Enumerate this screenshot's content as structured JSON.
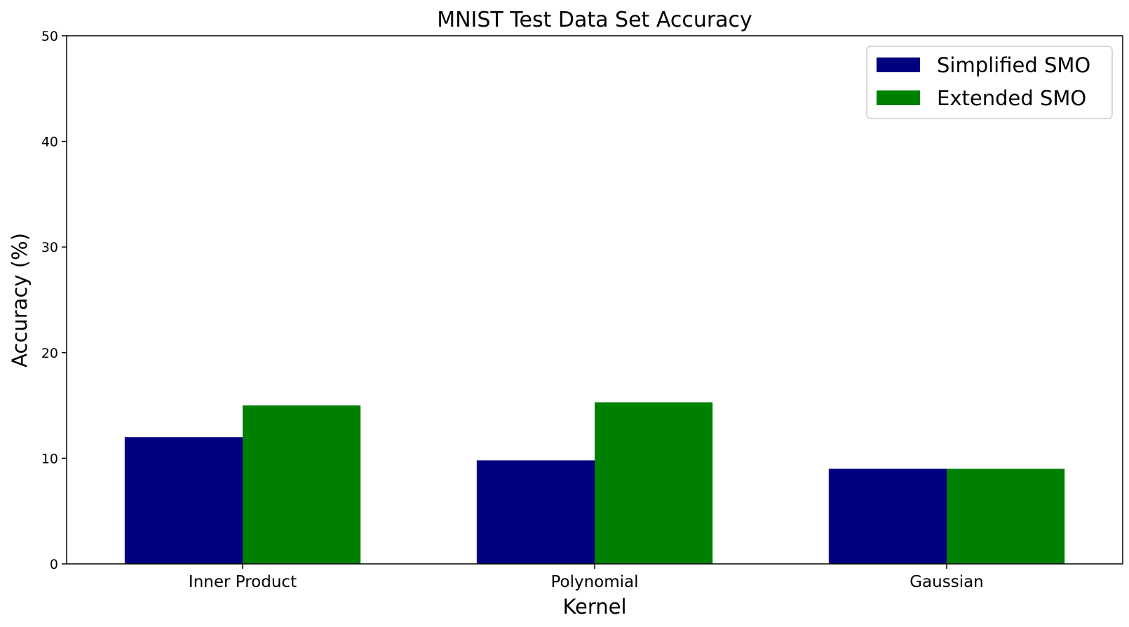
{
  "chart_data": {
    "type": "bar",
    "title": "MNIST Test Data Set Accuracy",
    "xlabel": "Kernel",
    "ylabel": "Accuracy (%)",
    "categories": [
      "Inner Product",
      "Polynomial",
      "Gaussian"
    ],
    "series": [
      {
        "name": "Simplified SMO",
        "values": [
          12.0,
          9.8,
          9.0
        ],
        "color": "#000080"
      },
      {
        "name": "Extended SMO",
        "values": [
          15.0,
          15.3,
          9.0
        ],
        "color": "#008000"
      }
    ],
    "ylim": [
      0,
      50
    ],
    "yticks": [
      0,
      10,
      20,
      30,
      40,
      50
    ],
    "grid": false,
    "legend_position": "top-right"
  }
}
